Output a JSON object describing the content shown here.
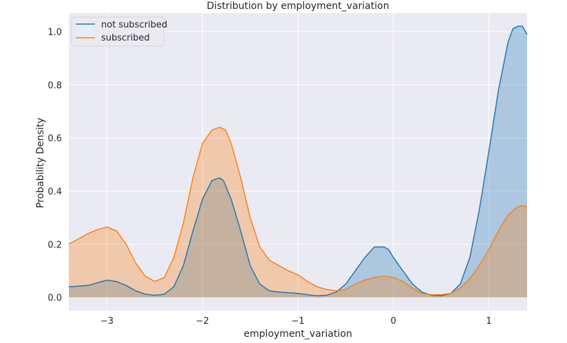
{
  "chart_data": {
    "type": "area",
    "title": "Distribution by employment_variation",
    "xlabel": "employment_variation",
    "ylabel": "Probability Density",
    "xlim": [
      -3.4,
      1.4
    ],
    "ylim": [
      -0.05,
      1.07
    ],
    "x_ticks": [
      -3,
      -2,
      -1,
      0,
      1
    ],
    "y_ticks": [
      0.0,
      0.2,
      0.4,
      0.6,
      0.8,
      1.0
    ],
    "x_tick_labels": [
      "−3",
      "−2",
      "−1",
      "0",
      "1"
    ],
    "y_tick_labels": [
      "0.0",
      "0.2",
      "0.4",
      "0.6",
      "0.8",
      "1.0"
    ],
    "grid": true,
    "legend_position": "top-left",
    "series": [
      {
        "name": "not subscribed",
        "color": "#1f77b4",
        "fill": "#a6c3dc",
        "x": [
          -3.4,
          -3.2,
          -3.1,
          -3.0,
          -2.9,
          -2.8,
          -2.7,
          -2.6,
          -2.5,
          -2.4,
          -2.3,
          -2.2,
          -2.1,
          -2.0,
          -1.9,
          -1.82,
          -1.78,
          -1.7,
          -1.6,
          -1.5,
          -1.4,
          -1.3,
          -1.2,
          -1.1,
          -1.0,
          -0.9,
          -0.8,
          -0.7,
          -0.6,
          -0.5,
          -0.4,
          -0.3,
          -0.2,
          -0.1,
          -0.05,
          0.0,
          0.1,
          0.2,
          0.3,
          0.4,
          0.5,
          0.6,
          0.7,
          0.8,
          0.9,
          1.0,
          1.1,
          1.2,
          1.25,
          1.3,
          1.35,
          1.4
        ],
        "y": [
          0.04,
          0.045,
          0.055,
          0.065,
          0.06,
          0.045,
          0.025,
          0.012,
          0.008,
          0.012,
          0.04,
          0.12,
          0.25,
          0.37,
          0.44,
          0.45,
          0.44,
          0.37,
          0.25,
          0.12,
          0.05,
          0.025,
          0.02,
          0.018,
          0.015,
          0.01,
          0.006,
          0.008,
          0.02,
          0.05,
          0.1,
          0.15,
          0.19,
          0.19,
          0.18,
          0.15,
          0.1,
          0.05,
          0.02,
          0.008,
          0.006,
          0.015,
          0.05,
          0.15,
          0.33,
          0.55,
          0.78,
          0.96,
          1.01,
          1.02,
          1.02,
          0.99
        ]
      },
      {
        "name": "subscribed",
        "color": "#ff7f0e",
        "fill": "#f5c9a6",
        "x": [
          -3.4,
          -3.3,
          -3.2,
          -3.1,
          -3.0,
          -2.9,
          -2.8,
          -2.7,
          -2.6,
          -2.5,
          -2.4,
          -2.3,
          -2.2,
          -2.1,
          -2.0,
          -1.9,
          -1.82,
          -1.76,
          -1.7,
          -1.6,
          -1.5,
          -1.4,
          -1.3,
          -1.2,
          -1.1,
          -1.0,
          -0.9,
          -0.8,
          -0.7,
          -0.6,
          -0.5,
          -0.4,
          -0.3,
          -0.2,
          -0.1,
          0.0,
          0.1,
          0.2,
          0.3,
          0.4,
          0.5,
          0.6,
          0.7,
          0.8,
          0.9,
          1.0,
          1.1,
          1.2,
          1.3,
          1.35,
          1.4
        ],
        "y": [
          0.2,
          0.22,
          0.24,
          0.255,
          0.265,
          0.25,
          0.2,
          0.13,
          0.08,
          0.06,
          0.075,
          0.15,
          0.28,
          0.45,
          0.58,
          0.63,
          0.64,
          0.63,
          0.58,
          0.45,
          0.3,
          0.19,
          0.14,
          0.12,
          0.1,
          0.085,
          0.06,
          0.04,
          0.03,
          0.025,
          0.03,
          0.05,
          0.065,
          0.075,
          0.08,
          0.075,
          0.06,
          0.035,
          0.015,
          0.01,
          0.01,
          0.015,
          0.035,
          0.07,
          0.12,
          0.18,
          0.25,
          0.31,
          0.34,
          0.345,
          0.34
        ]
      }
    ]
  }
}
